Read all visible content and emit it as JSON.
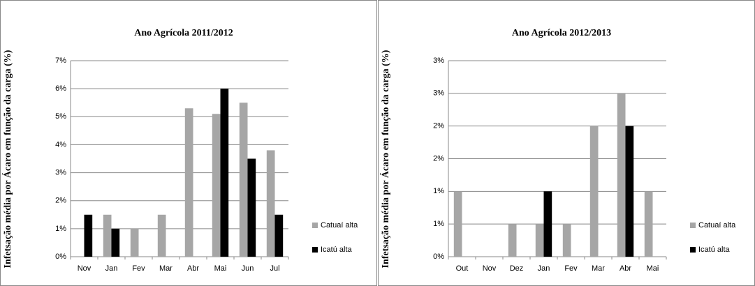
{
  "chart_data": [
    {
      "type": "bar",
      "title": "Ano Agrícola 2011/2012",
      "ylabel": "Infetsação média  por  Ácaro em função da carga (%)",
      "categories": [
        "Nov",
        "Jan",
        "Fev",
        "Mar",
        "Abr",
        "Mai",
        "Jun",
        "Jul"
      ],
      "series": [
        {
          "name": "Catuaí alta",
          "color": "#a6a6a6",
          "values": [
            0,
            1.5,
            1.0,
            1.5,
            5.3,
            5.1,
            5.5,
            3.8
          ]
        },
        {
          "name": "Icatú alta",
          "color": "#000000",
          "values": [
            1.5,
            1.0,
            0,
            0,
            0,
            6.0,
            3.5,
            1.5
          ]
        }
      ],
      "ylim": [
        0,
        7
      ],
      "yticks": [
        {
          "value": 0,
          "label": "0%"
        },
        {
          "value": 1,
          "label": "1%"
        },
        {
          "value": 2,
          "label": "2%"
        },
        {
          "value": 3,
          "label": "3%"
        },
        {
          "value": 4,
          "label": "4%"
        },
        {
          "value": 5,
          "label": "5%"
        },
        {
          "value": 6,
          "label": "6%"
        },
        {
          "value": 7,
          "label": "7%"
        }
      ],
      "grid": true,
      "legend": "right"
    },
    {
      "type": "bar",
      "title": "Ano Agrícola 2012/2013",
      "ylabel": "Infetsação média  por  Ácaro em função da carga (%)",
      "categories": [
        "Out",
        "Nov",
        "Dez",
        "Jan",
        "Fev",
        "Mar",
        "Abr",
        "Mai"
      ],
      "series": [
        {
          "name": "Catuaí alta",
          "color": "#a6a6a6",
          "values": [
            1.0,
            0,
            0.5,
            0.5,
            0.5,
            2.0,
            2.5,
            1.0
          ]
        },
        {
          "name": "Icatú alta",
          "color": "#000000",
          "values": [
            0,
            0,
            0,
            1.0,
            0,
            0,
            2.0,
            0
          ]
        }
      ],
      "ylim": [
        0,
        3
      ],
      "yticks": [
        {
          "value": 0,
          "label": "0%"
        },
        {
          "value": 0.5,
          "label": "1%"
        },
        {
          "value": 1,
          "label": "1%"
        },
        {
          "value": 1.5,
          "label": "2%"
        },
        {
          "value": 2,
          "label": "2%"
        },
        {
          "value": 2.5,
          "label": "3%"
        },
        {
          "value": 3,
          "label": "3%"
        }
      ],
      "grid": true,
      "legend": "right"
    }
  ]
}
